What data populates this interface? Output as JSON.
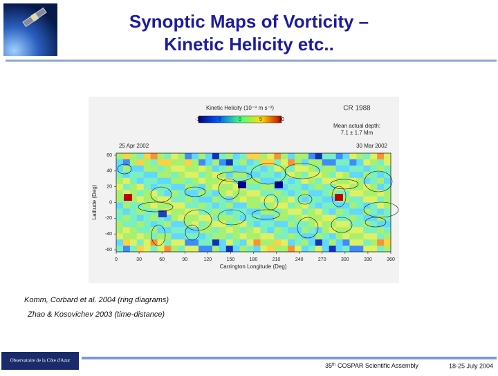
{
  "header": {
    "title_line1": "Synoptic Maps of Vorticity –",
    "title_line2": "Kinetic Helicity etc.."
  },
  "figure": {
    "colorbar_title": "Kinetic Helicity (10⁻⁸ m s⁻²)",
    "colorbar_ticks": [
      "-10",
      "-5",
      "0",
      "5",
      "10"
    ],
    "rotation": "CR 1988",
    "depth_line1": "Mean actual depth:",
    "depth_line2": "7.1 ± 1.7 Mm",
    "start_date": "25 Apr 2002",
    "end_date": "30 Mar 2002",
    "y_label": "Latitude (Deg)",
    "y_ticks": [
      "60",
      "40",
      "20",
      "0",
      "-20",
      "-40",
      "-60"
    ],
    "x_label": "Carrington Longitude (Deg)",
    "x_ticks": [
      "0",
      "30",
      "60",
      "90",
      "120",
      "150",
      "180",
      "210",
      "240",
      "270",
      "300",
      "330",
      "360"
    ]
  },
  "captions": [
    "Komm, Corbard et al. 2004 (ring diagrams)",
    "Zhao & Kosovichev 2003 (time-distance)"
  ],
  "footer": {
    "logo": "Observatoire de la Côte d'Azur",
    "event_number": "35",
    "event_suffix": "th",
    "event": "COSPAR Scientific Assembly",
    "dates": "18-25 July 2004"
  }
}
